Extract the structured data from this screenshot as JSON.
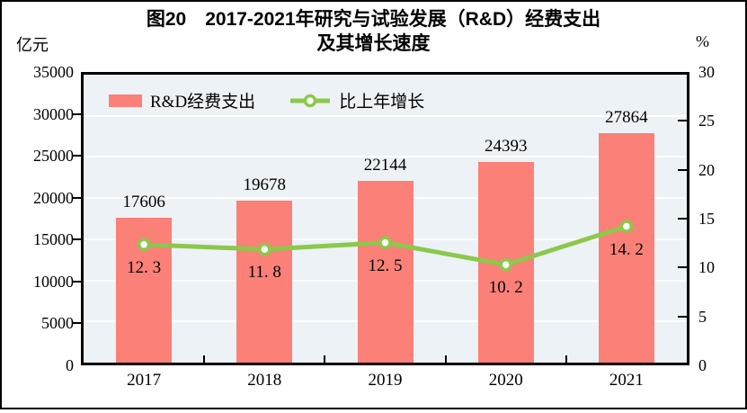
{
  "figure": {
    "title_line1": "图20　2017-2021年研究与试验发展（R&D）经费支出",
    "title_line2": "及其增长速度",
    "left_axis_unit": "亿元",
    "right_axis_unit": "%"
  },
  "legend": [
    {
      "label": "R&D经费支出",
      "marker": "bar-swatch"
    },
    {
      "label": "比上年增长",
      "marker": "line-with-circle"
    }
  ],
  "chart_data": {
    "type": "bar",
    "subtype": "combo-bar-line-dual-axis",
    "title": "图20　2017-2021年研究与试验发展（R&D）经费支出及其增长速度",
    "categories": [
      "2017",
      "2018",
      "2019",
      "2020",
      "2021"
    ],
    "series": [
      {
        "name": "R&D经费支出",
        "type": "bar",
        "axis": "left",
        "values": [
          17606,
          19678,
          22144,
          24393,
          27864
        ],
        "value_labels": [
          "17606",
          "19678",
          "22144",
          "24393",
          "27864"
        ]
      },
      {
        "name": "比上年增长",
        "type": "line",
        "axis": "right",
        "values": [
          12.3,
          11.8,
          12.5,
          10.2,
          14.2
        ],
        "value_labels": [
          "12. 3",
          "11. 8",
          "12. 5",
          "10. 2",
          "14. 2"
        ]
      }
    ],
    "left_axis": {
      "label": "亿元",
      "min": 0,
      "max": 35000,
      "step": 5000,
      "tick_labels": [
        "0",
        "5000",
        "10000",
        "15000",
        "20000",
        "25000",
        "30000",
        "35000"
      ]
    },
    "right_axis": {
      "label": "%",
      "min": 0,
      "max": 30,
      "step": 5,
      "tick_labels": [
        "0",
        "5",
        "10",
        "15",
        "20",
        "25",
        "30"
      ]
    },
    "grid": true,
    "legend_position": "top-left-inside"
  },
  "colors": {
    "bar": "#FA8078",
    "line": "#8CC84B",
    "marker_fill": "#FFFFFF",
    "plot_bg": "#EDF2F6",
    "grid": "#FFFFFF",
    "axis_frame": "#000000",
    "text": "#000000",
    "figure_bg": "#FFFFFF"
  }
}
